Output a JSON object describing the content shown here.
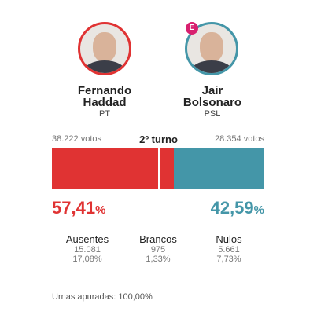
{
  "header": {
    "round": "2º turno"
  },
  "candidates": [
    {
      "name_lines": [
        "Fernando",
        "Haddad"
      ],
      "party": "PT",
      "votes": "38.222 votos",
      "percent": 57.41,
      "percent_number": "57,41",
      "percent_unit": "%",
      "color": "#e03333"
    },
    {
      "name_lines": [
        "Jair",
        "Bolsonaro"
      ],
      "party": "PSL",
      "votes": "28.354 votos",
      "percent": 42.59,
      "percent_number": "42,59",
      "percent_unit": "%",
      "color": "#4496a8",
      "badge": "E"
    }
  ],
  "stats": [
    {
      "label": "Ausentes",
      "count": "15.081",
      "share": "17,08%"
    },
    {
      "label": "Brancos",
      "count": "975",
      "share": "1,33%"
    },
    {
      "label": "Nulos",
      "count": "5.661",
      "share": "7,73%"
    }
  ],
  "footer": "Urnas apuradas: 100,00%"
}
